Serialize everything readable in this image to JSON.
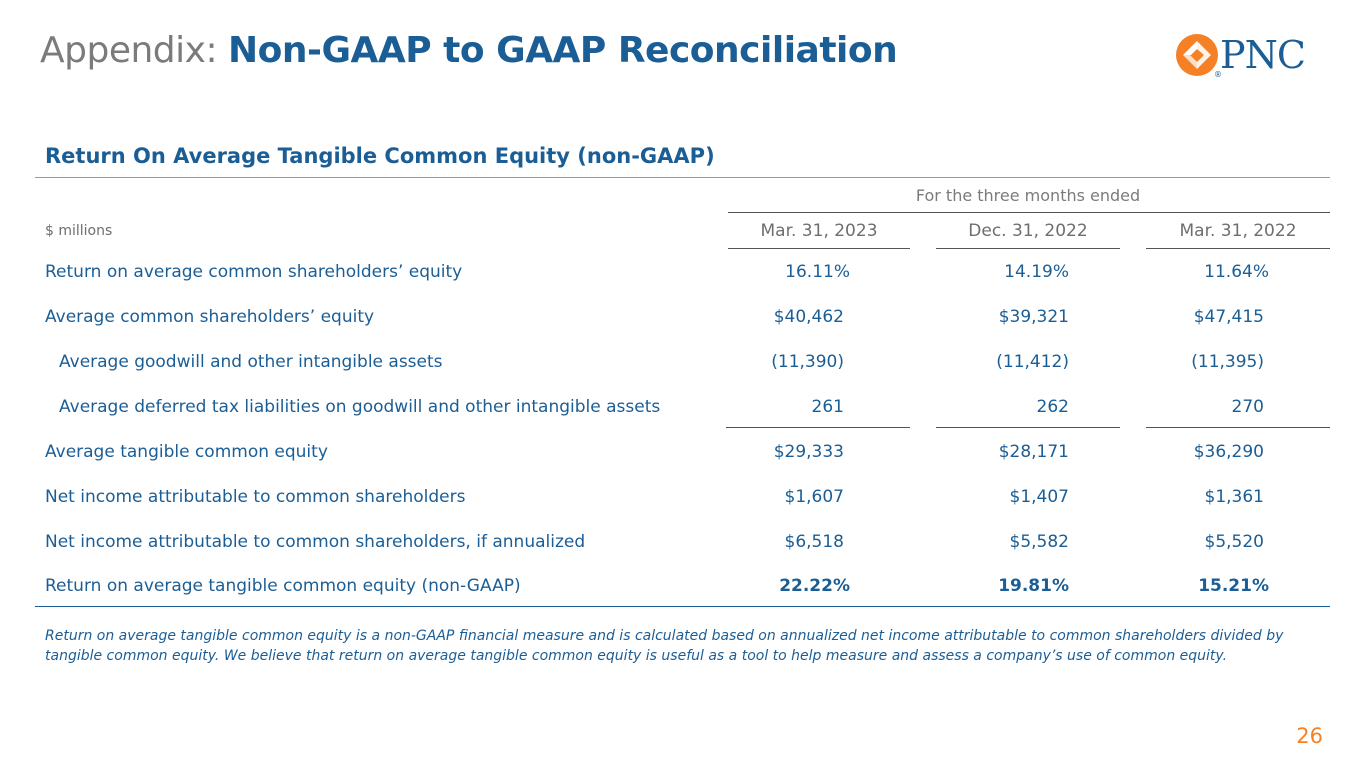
{
  "header": {
    "title_prefix": "Appendix:",
    "title_main": "Non-GAAP to GAAP Reconciliation",
    "logo_text": "PNC",
    "logo_mark": "®",
    "brand_blue": "#1b5e96",
    "brand_orange": "#f58025"
  },
  "section": {
    "title": "Return On Average Tangible Common Equity (non-GAAP)"
  },
  "table": {
    "period_header": "For the three months ended",
    "units": "$ millions",
    "columns": [
      "Mar. 31, 2023",
      "Dec. 31, 2022",
      "Mar. 31, 2022"
    ],
    "rows": [
      {
        "label": "Return on average common shareholders’ equity",
        "values": [
          "16.11%",
          "14.19%",
          "11.64%"
        ]
      },
      {
        "label": "Average common shareholders’ equity",
        "values": [
          "$40,462",
          "$39,321",
          "$47,415"
        ]
      },
      {
        "label": "Average goodwill and other intangible assets",
        "values": [
          "(11,390)",
          "(11,412)",
          "(11,395)"
        ]
      },
      {
        "label": "Average deferred tax liabilities on goodwill and other intangible assets",
        "values": [
          "261",
          "262",
          "270"
        ]
      },
      {
        "label": "Average tangible common equity",
        "values": [
          "$29,333",
          "$28,171",
          "$36,290"
        ]
      },
      {
        "label": "Net income attributable to common shareholders",
        "values": [
          "$1,607",
          "$1,407",
          "$1,361"
        ]
      },
      {
        "label": "Net income attributable to common shareholders, if annualized",
        "values": [
          "$6,518",
          "$5,582",
          "$5,520"
        ]
      },
      {
        "label": "Return on average tangible common equity (non-GAAP)",
        "values": [
          "22.22%",
          "19.81%",
          "15.21%"
        ]
      }
    ]
  },
  "footnote": "Return on average tangible common equity is a non-GAAP financial measure and is calculated based on annualized net income attributable to common shareholders divided by tangible common equity. We believe that return on average tangible common equity is useful as a tool to help measure and assess a company’s use of common equity.",
  "page_number": "26"
}
